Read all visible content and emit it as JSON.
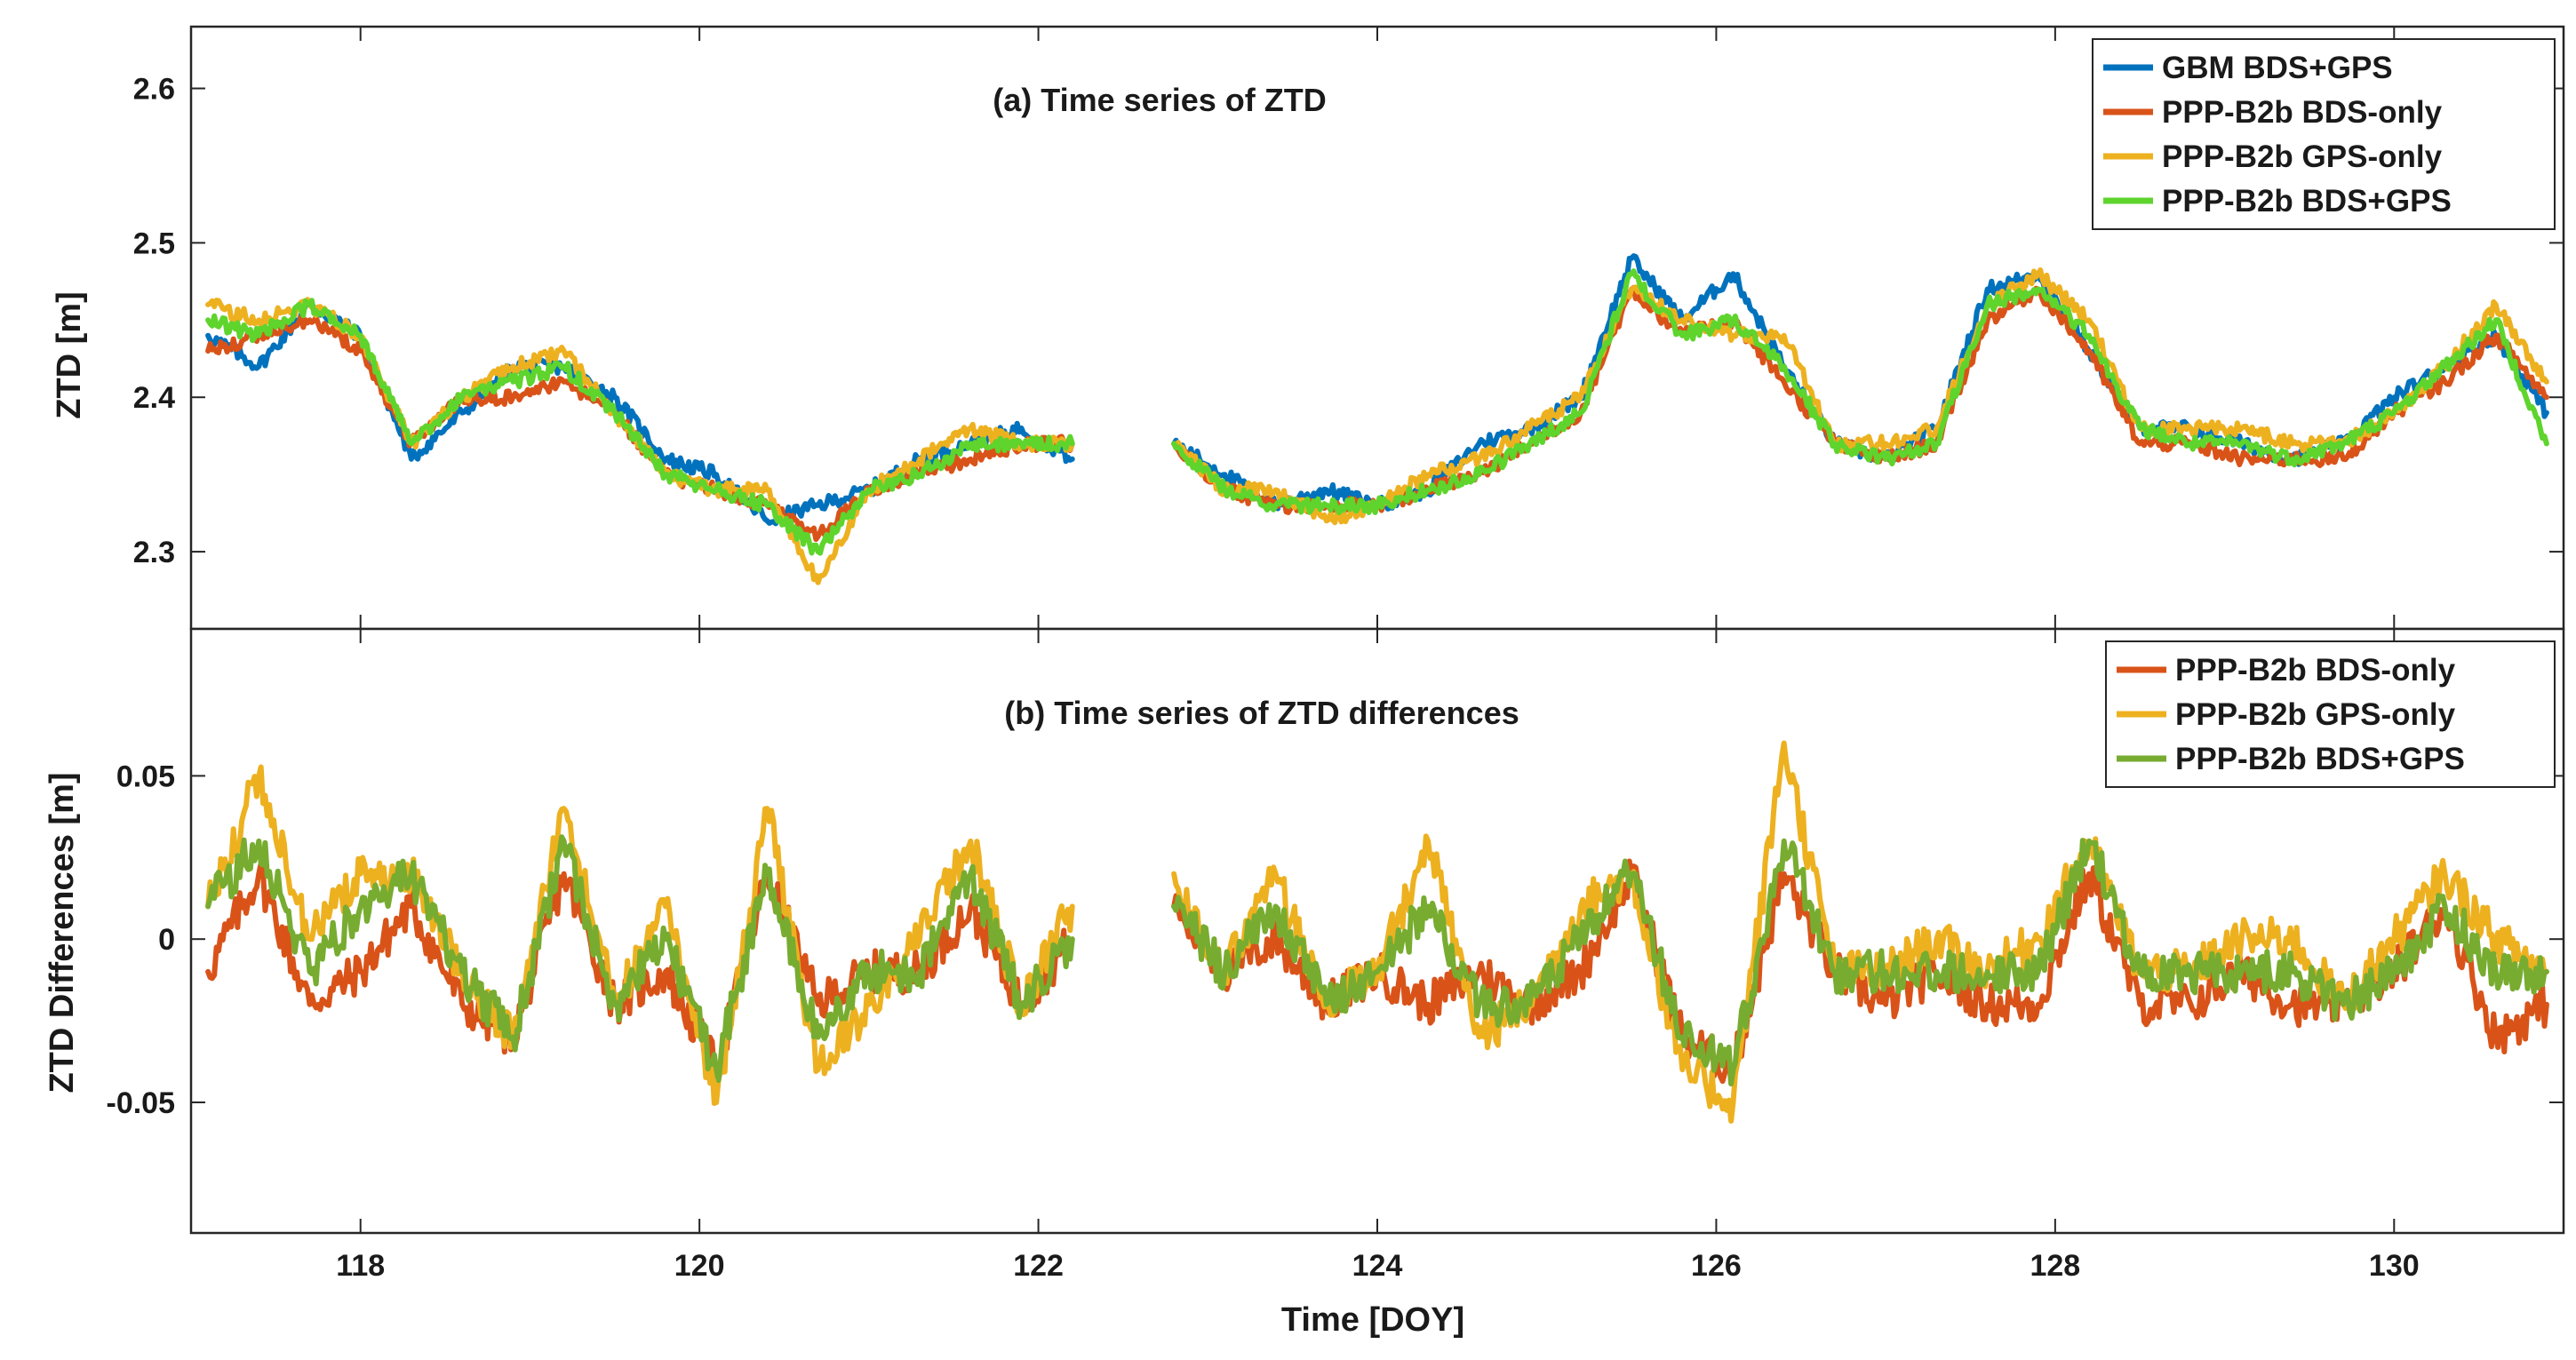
{
  "chart_data": [
    {
      "type": "line",
      "title": "(a) Time series of ZTD",
      "xlabel": "",
      "ylabel": "ZTD [m]",
      "xlim": [
        117,
        131
      ],
      "ylim": [
        2.25,
        2.64
      ],
      "yticks": [
        2.3,
        2.4,
        2.5,
        2.6
      ],
      "ytick_labels": [
        "2.3",
        "2.4",
        "2.5",
        "2.6"
      ],
      "grid": false,
      "legend_position": "top-right",
      "x": [
        117.1,
        117.4,
        117.7,
        118.0,
        118.3,
        118.6,
        118.9,
        119.2,
        119.5,
        119.8,
        120.1,
        120.4,
        120.7,
        121.0,
        121.3,
        121.6,
        121.9,
        122.2,
        null,
        122.8,
        123.1,
        123.4,
        123.7,
        124.0,
        124.3,
        124.6,
        124.9,
        125.2,
        125.5,
        125.8,
        126.1,
        126.4,
        126.7,
        127.0,
        127.3,
        127.6,
        127.9,
        128.2,
        128.5,
        128.8,
        129.1,
        129.4,
        129.7,
        130.0,
        130.3,
        130.6,
        130.9
      ],
      "series": [
        {
          "name": "GBM BDS+GPS",
          "color": "#0072BD",
          "values": [
            2.44,
            2.42,
            2.46,
            2.44,
            2.36,
            2.39,
            2.42,
            2.42,
            2.4,
            2.36,
            2.35,
            2.32,
            2.33,
            2.34,
            2.36,
            2.37,
            2.38,
            2.36,
            null,
            2.37,
            2.35,
            2.33,
            2.34,
            2.33,
            2.34,
            2.37,
            2.38,
            2.4,
            2.49,
            2.45,
            2.48,
            2.42,
            2.37,
            2.36,
            2.38,
            2.47,
            2.48,
            2.43,
            2.38,
            2.38,
            2.37,
            2.36,
            2.37,
            2.4,
            2.42,
            2.44,
            2.39
          ]
        },
        {
          "name": "PPP-B2b BDS-only",
          "color": "#D95319",
          "values": [
            2.43,
            2.44,
            2.45,
            2.43,
            2.37,
            2.4,
            2.4,
            2.41,
            2.39,
            2.35,
            2.34,
            2.33,
            2.31,
            2.34,
            2.35,
            2.36,
            2.37,
            2.37,
            null,
            2.37,
            2.34,
            2.33,
            2.33,
            2.33,
            2.34,
            2.35,
            2.37,
            2.39,
            2.47,
            2.44,
            2.45,
            2.41,
            2.37,
            2.36,
            2.37,
            2.45,
            2.47,
            2.43,
            2.37,
            2.37,
            2.36,
            2.36,
            2.36,
            2.39,
            2.41,
            2.44,
            2.4
          ]
        },
        {
          "name": "PPP-B2b GPS-only",
          "color": "#EDB120",
          "values": [
            2.46,
            2.45,
            2.46,
            2.44,
            2.37,
            2.4,
            2.42,
            2.43,
            2.39,
            2.35,
            2.34,
            2.34,
            2.28,
            2.34,
            2.36,
            2.38,
            2.37,
            2.37,
            null,
            2.37,
            2.34,
            2.34,
            2.32,
            2.33,
            2.35,
            2.36,
            2.38,
            2.4,
            2.47,
            2.45,
            2.44,
            2.44,
            2.37,
            2.37,
            2.38,
            2.46,
            2.48,
            2.45,
            2.38,
            2.38,
            2.38,
            2.37,
            2.37,
            2.39,
            2.42,
            2.46,
            2.41
          ]
        },
        {
          "name": "PPP-B2b BDS+GPS",
          "color": "#5ED42D",
          "values": [
            2.45,
            2.44,
            2.46,
            2.44,
            2.37,
            2.4,
            2.41,
            2.42,
            2.39,
            2.35,
            2.34,
            2.33,
            2.3,
            2.34,
            2.35,
            2.37,
            2.37,
            2.37,
            null,
            2.37,
            2.34,
            2.33,
            2.33,
            2.33,
            2.34,
            2.35,
            2.37,
            2.39,
            2.48,
            2.44,
            2.45,
            2.42,
            2.37,
            2.36,
            2.37,
            2.46,
            2.47,
            2.44,
            2.38,
            2.37,
            2.37,
            2.36,
            2.37,
            2.39,
            2.42,
            2.45,
            2.37
          ]
        }
      ]
    },
    {
      "type": "line",
      "title": "(b) Time series of ZTD differences",
      "xlabel": "Time [DOY]",
      "ylabel": "ZTD Differences [m]",
      "xlim": [
        117,
        131
      ],
      "ylim": [
        -0.09,
        0.095
      ],
      "xticks": [
        118,
        120,
        122,
        124,
        126,
        128,
        130
      ],
      "xtick_labels": [
        "118",
        "120",
        "122",
        "124",
        "126",
        "128",
        "130"
      ],
      "yticks": [
        -0.05,
        0,
        0.05
      ],
      "ytick_labels": [
        "-0.05",
        "0",
        "0.05"
      ],
      "grid": false,
      "legend_position": "top-right",
      "x": [
        117.1,
        117.4,
        117.7,
        118.0,
        118.3,
        118.6,
        118.9,
        119.2,
        119.5,
        119.8,
        120.1,
        120.4,
        120.7,
        121.0,
        121.3,
        121.6,
        121.9,
        122.2,
        null,
        122.8,
        123.1,
        123.4,
        123.7,
        124.0,
        124.3,
        124.6,
        124.9,
        125.2,
        125.5,
        125.8,
        126.1,
        126.4,
        126.7,
        127.0,
        127.3,
        127.6,
        127.9,
        128.2,
        128.5,
        128.8,
        129.1,
        129.4,
        129.7,
        130.0,
        130.3,
        130.6,
        130.9
      ],
      "series": [
        {
          "name": "PPP-B2b BDS-only",
          "color": "#D95319",
          "values": [
            -0.01,
            0.02,
            -0.02,
            -0.01,
            0.01,
            -0.02,
            -0.03,
            0.02,
            -0.02,
            -0.01,
            -0.04,
            0.02,
            -0.02,
            -0.01,
            -0.01,
            0.01,
            -0.02,
            0.0,
            null,
            0.01,
            -0.01,
            0.0,
            -0.02,
            -0.01,
            -0.02,
            -0.01,
            -0.02,
            -0.01,
            0.02,
            -0.03,
            -0.04,
            0.02,
            -0.01,
            -0.02,
            -0.01,
            -0.02,
            -0.02,
            0.02,
            -0.02,
            -0.02,
            -0.01,
            -0.02,
            -0.02,
            -0.01,
            0.01,
            -0.03,
            -0.02
          ]
        },
        {
          "name": "PPP-B2b GPS-only",
          "color": "#EDB120",
          "values": [
            0.01,
            0.05,
            0.0,
            0.02,
            0.02,
            -0.01,
            -0.03,
            0.04,
            -0.02,
            0.01,
            -0.05,
            0.04,
            -0.04,
            -0.02,
            0.0,
            0.03,
            -0.02,
            0.01,
            null,
            0.02,
            -0.01,
            0.02,
            -0.02,
            -0.01,
            0.03,
            -0.03,
            -0.02,
            0.01,
            0.02,
            -0.04,
            -0.05,
            0.06,
            -0.01,
            -0.01,
            0.0,
            -0.01,
            0.0,
            0.03,
            -0.01,
            -0.01,
            0.0,
            0.0,
            -0.02,
            0.0,
            0.02,
            0.0,
            -0.01
          ]
        },
        {
          "name": "PPP-B2b BDS+GPS",
          "color": "#77AC30",
          "values": [
            0.01,
            0.03,
            -0.01,
            0.01,
            0.02,
            -0.01,
            -0.03,
            0.03,
            -0.02,
            0.0,
            -0.04,
            0.02,
            -0.03,
            -0.01,
            -0.01,
            0.02,
            -0.02,
            0.0,
            null,
            0.01,
            -0.01,
            0.01,
            -0.02,
            -0.01,
            0.01,
            -0.02,
            -0.02,
            0.0,
            0.02,
            -0.03,
            -0.04,
            0.03,
            -0.01,
            -0.01,
            -0.01,
            -0.01,
            -0.01,
            0.03,
            -0.01,
            -0.01,
            -0.01,
            -0.01,
            -0.02,
            -0.01,
            0.01,
            -0.01,
            -0.01
          ]
        }
      ]
    }
  ]
}
